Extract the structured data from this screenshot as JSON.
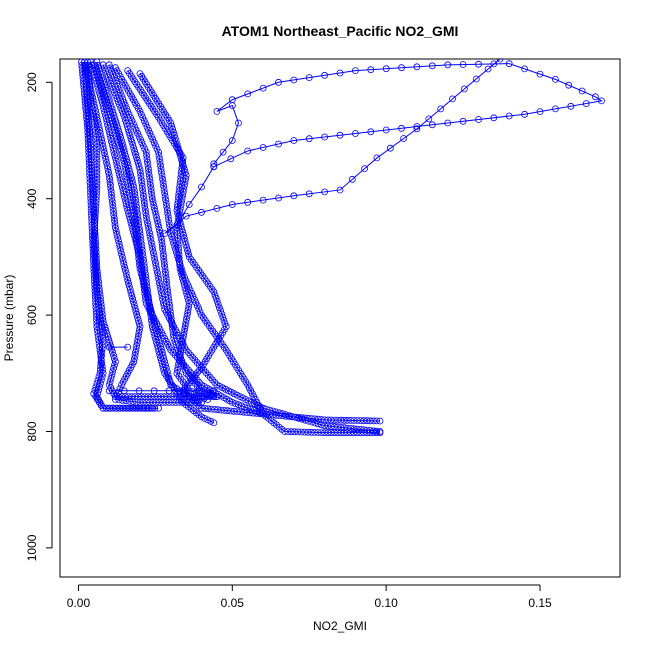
{
  "chart_data": {
    "type": "scatter",
    "title": "ATOM1 Northeast_Pacific NO2_GMI",
    "xlabel": "NO2_GMI",
    "ylabel": "Pressure (mbar)",
    "xlim": [
      -0.006,
      0.176
    ],
    "ylim": [
      1050,
      160
    ],
    "y_reversed": true,
    "grid": false,
    "marker": "open-circle",
    "x_ticks": [
      0.0,
      0.05,
      0.1,
      0.15
    ],
    "x_tick_labels": [
      "0.00",
      "0.05",
      "0.10",
      "0.15"
    ],
    "y_ticks": [
      200,
      400,
      600,
      800,
      1000
    ],
    "y_tick_labels": [
      "200",
      "400",
      "600",
      "800",
      "1000"
    ],
    "colors": {
      "series": "#0000ff",
      "axis": "#000000"
    },
    "series": [
      {
        "points": [
          [
            0.003,
            165
          ],
          [
            0.004,
            230
          ],
          [
            0.006,
            300
          ],
          [
            0.006,
            380
          ],
          [
            0.005,
            470
          ],
          [
            0.006,
            560
          ],
          [
            0.008,
            640
          ],
          [
            0.007,
            700
          ],
          [
            0.005,
            735
          ],
          [
            0.008,
            760
          ],
          [
            0.02,
            760
          ],
          [
            0.026,
            760
          ]
        ]
      },
      {
        "points": [
          [
            0.002,
            165
          ],
          [
            0.003,
            240
          ],
          [
            0.004,
            320
          ],
          [
            0.005,
            420
          ],
          [
            0.006,
            520
          ],
          [
            0.008,
            610
          ],
          [
            0.012,
            680
          ],
          [
            0.01,
            720
          ],
          [
            0.012,
            740
          ],
          [
            0.03,
            740
          ],
          [
            0.045,
            740
          ]
        ]
      },
      {
        "points": [
          [
            0.006,
            165
          ],
          [
            0.01,
            230
          ],
          [
            0.014,
            300
          ],
          [
            0.018,
            380
          ],
          [
            0.02,
            460
          ],
          [
            0.022,
            540
          ],
          [
            0.024,
            620
          ],
          [
            0.028,
            700
          ],
          [
            0.034,
            750
          ],
          [
            0.04,
            775
          ],
          [
            0.044,
            785
          ]
        ]
      },
      {
        "points": [
          [
            0.01,
            170
          ],
          [
            0.016,
            250
          ],
          [
            0.022,
            320
          ],
          [
            0.024,
            400
          ],
          [
            0.027,
            470
          ],
          [
            0.029,
            560
          ],
          [
            0.031,
            640
          ],
          [
            0.035,
            700
          ],
          [
            0.04,
            730
          ],
          [
            0.045,
            740
          ]
        ]
      },
      {
        "points": [
          [
            0.004,
            165
          ],
          [
            0.008,
            240
          ],
          [
            0.012,
            330
          ],
          [
            0.016,
            420
          ],
          [
            0.02,
            500
          ],
          [
            0.022,
            580
          ],
          [
            0.03,
            660
          ],
          [
            0.04,
            720
          ],
          [
            0.05,
            750
          ],
          [
            0.06,
            770
          ],
          [
            0.08,
            780
          ],
          [
            0.098,
            782
          ]
        ]
      },
      {
        "points": [
          [
            0.008,
            170
          ],
          [
            0.015,
            260
          ],
          [
            0.02,
            350
          ],
          [
            0.022,
            430
          ],
          [
            0.025,
            510
          ],
          [
            0.028,
            590
          ],
          [
            0.035,
            660
          ],
          [
            0.045,
            720
          ],
          [
            0.06,
            760
          ],
          [
            0.08,
            790
          ],
          [
            0.098,
            800
          ]
        ]
      },
      {
        "points": [
          [
            0.012,
            175
          ],
          [
            0.02,
            250
          ],
          [
            0.026,
            320
          ],
          [
            0.028,
            390
          ],
          [
            0.03,
            460
          ],
          [
            0.034,
            530
          ],
          [
            0.04,
            600
          ],
          [
            0.048,
            660
          ],
          [
            0.055,
            720
          ],
          [
            0.06,
            770
          ],
          [
            0.067,
            800
          ],
          [
            0.08,
            802
          ],
          [
            0.098,
            802
          ]
        ]
      },
      {
        "points": [
          [
            0.016,
            180
          ],
          [
            0.026,
            260
          ],
          [
            0.034,
            330
          ],
          [
            0.032,
            420
          ],
          [
            0.036,
            500
          ],
          [
            0.044,
            560
          ],
          [
            0.048,
            620
          ],
          [
            0.04,
            690
          ],
          [
            0.034,
            730
          ],
          [
            0.04,
            760
          ],
          [
            0.06,
            770
          ]
        ]
      },
      {
        "points": [
          [
            0.02,
            185
          ],
          [
            0.03,
            270
          ],
          [
            0.035,
            360
          ],
          [
            0.032,
            450
          ],
          [
            0.033,
            520
          ],
          [
            0.036,
            580
          ],
          [
            0.034,
            640
          ],
          [
            0.032,
            700
          ],
          [
            0.036,
            730
          ],
          [
            0.044,
            740
          ]
        ]
      },
      {
        "points": [
          [
            0.002,
            165
          ],
          [
            0.006,
            260
          ],
          [
            0.01,
            360
          ],
          [
            0.012,
            450
          ],
          [
            0.016,
            540
          ],
          [
            0.02,
            620
          ],
          [
            0.018,
            680
          ],
          [
            0.014,
            720
          ],
          [
            0.012,
            745
          ],
          [
            0.02,
            750
          ],
          [
            0.04,
            750
          ]
        ]
      },
      {
        "points": [
          [
            0.001,
            165
          ],
          [
            0.003,
            280
          ],
          [
            0.004,
            400
          ],
          [
            0.005,
            520
          ],
          [
            0.006,
            620
          ],
          [
            0.008,
            700
          ],
          [
            0.006,
            740
          ],
          [
            0.008,
            760
          ],
          [
            0.024,
            760
          ]
        ]
      },
      {
        "points": [
          [
            0.005,
            170
          ],
          [
            0.01,
            250
          ],
          [
            0.015,
            340
          ],
          [
            0.018,
            430
          ],
          [
            0.02,
            520
          ],
          [
            0.024,
            600
          ],
          [
            0.028,
            680
          ],
          [
            0.03,
            720
          ],
          [
            0.036,
            740
          ],
          [
            0.042,
            745
          ]
        ]
      },
      {
        "points": [
          [
            0.044,
            340
          ],
          [
            0.05,
            300
          ],
          [
            0.052,
            270
          ],
          [
            0.05,
            240
          ],
          [
            0.045,
            250
          ],
          [
            0.05,
            230
          ],
          [
            0.065,
            200
          ],
          [
            0.09,
            180
          ],
          [
            0.12,
            170
          ],
          [
            0.14,
            168
          ],
          [
            0.155,
            195
          ],
          [
            0.168,
            225
          ],
          [
            0.17,
            232
          ],
          [
            0.145,
            255
          ],
          [
            0.12,
            270
          ],
          [
            0.095,
            285
          ],
          [
            0.07,
            300
          ],
          [
            0.055,
            318
          ],
          [
            0.044,
            345
          ]
        ]
      },
      {
        "points": [
          [
            0.044,
            345
          ],
          [
            0.04,
            380
          ],
          [
            0.036,
            410
          ],
          [
            0.032,
            445
          ],
          [
            0.028,
            460
          ],
          [
            0.035,
            430
          ],
          [
            0.05,
            410
          ],
          [
            0.07,
            395
          ],
          [
            0.085,
            385
          ],
          [
            0.097,
            330
          ],
          [
            0.11,
            280
          ],
          [
            0.137,
            160
          ]
        ]
      },
      {
        "points": [
          [
            0.01,
            655
          ],
          [
            0.016,
            655
          ]
        ]
      },
      {
        "points": [
          [
            0.01,
            730
          ],
          [
            0.044,
            730
          ]
        ]
      }
    ]
  }
}
